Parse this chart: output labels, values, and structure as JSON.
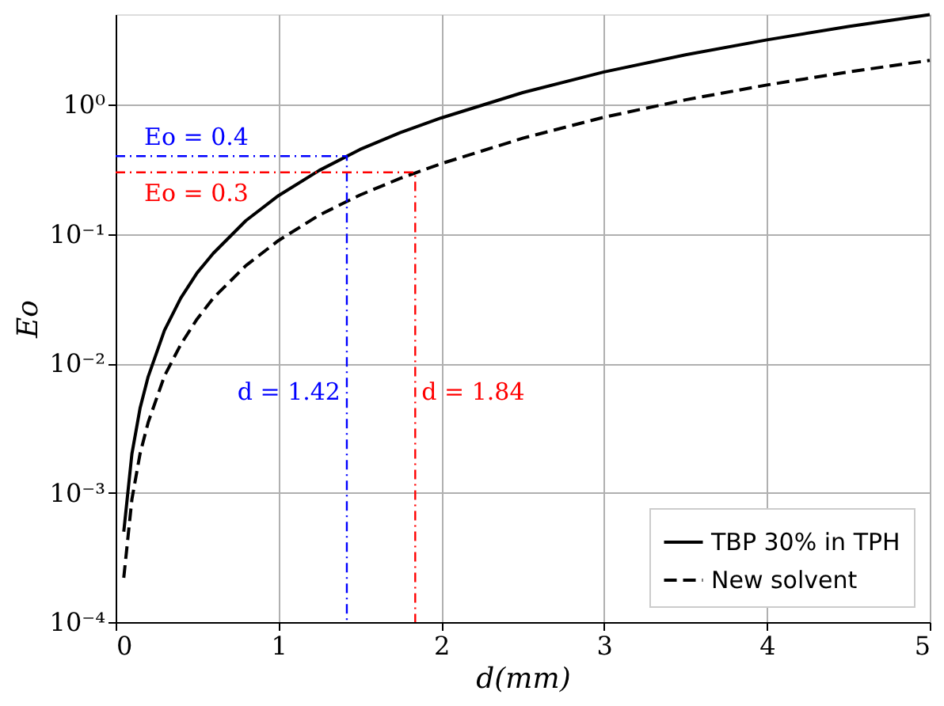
{
  "chart_data": {
    "type": "line",
    "xlabel": "d(mm)",
    "ylabel": "Eo",
    "log": "y",
    "grid": true,
    "legend": "bottom right",
    "xlim": [
      0,
      5
    ],
    "xticks": [
      0,
      1,
      2,
      3,
      4,
      5
    ],
    "ylim": [
      0.0001,
      5
    ],
    "yticks": [
      {
        "value": 0.0001,
        "label": "10⁻⁴"
      },
      {
        "value": 0.001,
        "label": "10⁻³"
      },
      {
        "value": 0.01,
        "label": "10⁻²"
      },
      {
        "value": 0.1,
        "label": "10⁻¹"
      },
      {
        "value": 1,
        "label": "10⁰"
      }
    ],
    "x": [
      0.05,
      0.1,
      0.15,
      0.2,
      0.3,
      0.4,
      0.5,
      0.6,
      0.8,
      1.0,
      1.25,
      1.5,
      1.75,
      2,
      2.5,
      3,
      3.5,
      4,
      4.5,
      5
    ],
    "series": [
      {
        "name": "TBP 30% in TPH",
        "color": "#000000",
        "line_style": "solid",
        "values": [
          0.0005,
          0.002,
          0.0045,
          0.0079,
          0.018,
          0.032,
          0.05,
          0.071,
          0.127,
          0.198,
          0.31,
          0.45,
          0.61,
          0.79,
          1.24,
          1.79,
          2.43,
          3.17,
          4.02,
          4.96
        ]
      },
      {
        "name": "New solvent",
        "color": "#000000",
        "line_style": "dashed",
        "values": [
          0.00022,
          0.00089,
          0.002,
          0.0035,
          0.008,
          0.014,
          0.022,
          0.032,
          0.057,
          0.089,
          0.14,
          0.2,
          0.27,
          0.35,
          0.55,
          0.8,
          1.09,
          1.42,
          1.79,
          2.2
        ]
      },
      {
        "color": "#0000ff",
        "line_style": "dashdot",
        "x": [
          0,
          1.42,
          1.42
        ],
        "values": [
          0.4,
          0.4,
          0.0001
        ]
      },
      {
        "color": "#ff0000",
        "line_style": "dashdot",
        "x": [
          0,
          1.84,
          1.84
        ],
        "values": [
          0.3,
          0.3,
          0.0001
        ]
      }
    ],
    "annotations": [
      {
        "text": "Eo = 0.4",
        "x": 0,
        "y": 0.4
      },
      {
        "text": "Eo = 0.3",
        "x": 0,
        "y": 0.3
      },
      {
        "text": "d = 1.42",
        "x": 1.42,
        "y": 0.006
      },
      {
        "text": "d = 1.84",
        "x": 1.84,
        "y": 0.006
      }
    ]
  }
}
